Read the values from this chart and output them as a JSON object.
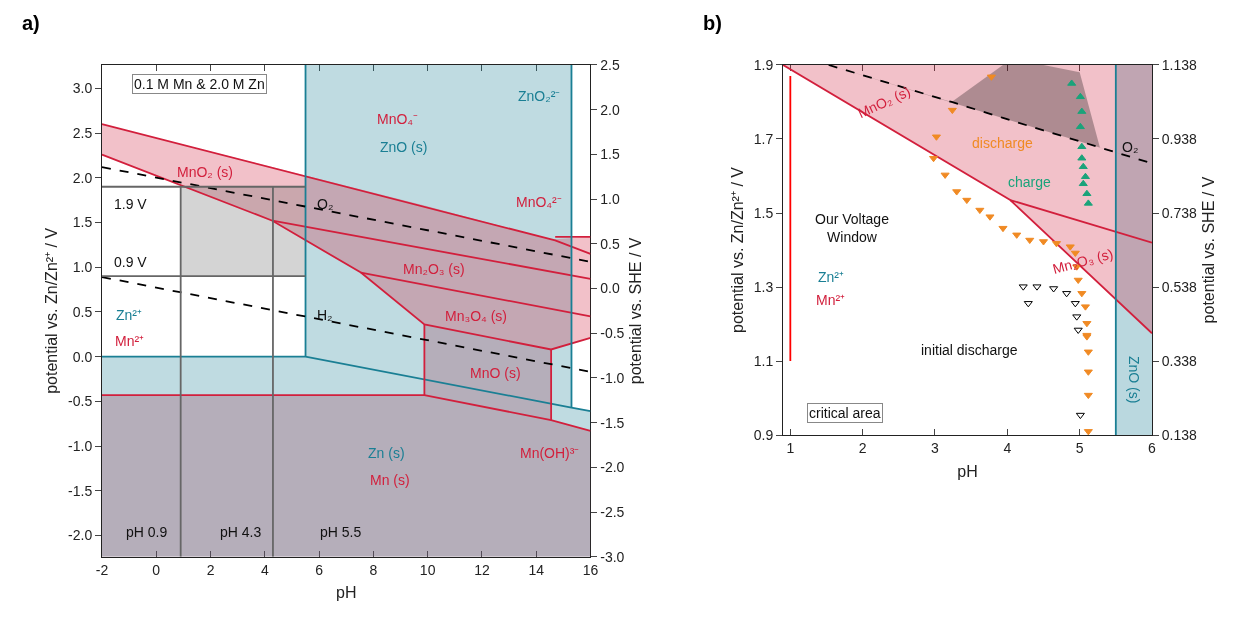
{
  "chart_data": [
    {
      "type": "line",
      "title": "a)",
      "xlabel": "pH",
      "ylabel": "potential vs. Zn/Zn²⁺ / V",
      "y2label": "potential vs. SHE / V",
      "xlim": [
        -2,
        16
      ],
      "xticks": [
        -2,
        0,
        2,
        4,
        6,
        8,
        10,
        12,
        14,
        16
      ],
      "ylim": [
        -2.238,
        3.262
      ],
      "yticks": [
        {
          "value": -2,
          "label": "-2.0"
        },
        {
          "value": -1.5,
          "label": "-1.5"
        },
        {
          "value": -1,
          "label": "-1.0"
        },
        {
          "value": -0.5,
          "label": "-0.5"
        },
        {
          "value": 0,
          "label": "0.0"
        },
        {
          "value": 0.5,
          "label": "0.5"
        },
        {
          "value": 1,
          "label": "1.0"
        },
        {
          "value": 1.5,
          "label": "1.5"
        },
        {
          "value": 2,
          "label": "2.0"
        },
        {
          "value": 2.5,
          "label": "2.5"
        },
        {
          "value": 3,
          "label": "3.0"
        }
      ],
      "y2lim": [
        -3,
        2.5
      ],
      "y2ticks": [
        {
          "value": -3,
          "label": "-3.0"
        },
        {
          "value": -2.5,
          "label": "-2.5"
        },
        {
          "value": -2,
          "label": "-2.0"
        },
        {
          "value": -1.5,
          "label": "-1.5"
        },
        {
          "value": -1,
          "label": "-1.0"
        },
        {
          "value": -0.5,
          "label": "-0.5"
        },
        {
          "value": 0,
          "label": "0.0"
        },
        {
          "value": 0.5,
          "label": "0.5"
        },
        {
          "value": 1,
          "label": "1.0"
        },
        {
          "value": 1.5,
          "label": "1.5"
        },
        {
          "value": 2,
          "label": "2.0"
        },
        {
          "value": 2.5,
          "label": "2.5"
        }
      ],
      "series": [
        {
          "color": "#d21f3c",
          "x": [
            -2,
            9.88,
            9.88,
            14.55,
            14.55,
            16
          ],
          "values": [
            -0.43,
            -0.43,
            -0.43,
            -0.71,
            -0.71,
            -0.83
          ],
          "lower": [
            -2.238,
            -2.238,
            -2.238,
            -2.238,
            -2.238,
            -2.238
          ],
          "upper": [
            -0.43,
            -0.43,
            0.36,
            0.08,
            -0.71,
            -0.83
          ]
        },
        {
          "color": "#1a7f94",
          "x": [
            -2,
            5.5,
            5.5,
            15.3,
            15.3,
            16
          ],
          "values": [
            0,
            0,
            0,
            -0.57,
            -0.57,
            -0.61
          ],
          "lower": [
            -2.238,
            -2.238,
            -2.238,
            -2.238,
            -2.238,
            -2.238
          ],
          "upper": [
            0,
            0,
            3.262,
            3.262,
            -0.57,
            -0.61
          ]
        },
        {
          "color": "#d21f3c",
          "x": [
            -2,
            4.28,
            7.54,
            9.88,
            14.55,
            16
          ],
          "values": [
            2.26,
            1.52,
            0.94,
            0.36,
            0.08,
            0.21
          ],
          "lower": [
            2.26,
            1.52,
            0.94,
            0.36,
            0.08,
            0.21
          ],
          "upper": [
            2.6,
            2.12,
            1.87,
            1.69,
            1.31,
            1.34
          ]
        },
        {
          "color": "#d21f3c",
          "x": [
            -2,
            14.7,
            16
          ],
          "values": [
            2.6,
            1.3,
            1.15
          ]
        },
        {
          "color": "#d21f3c",
          "x": [
            14.7,
            16
          ],
          "values": [
            1.34,
            1.34
          ]
        },
        {
          "color": "#d21f3c",
          "x": [
            4.28,
            16
          ],
          "values": [
            1.52,
            0.87
          ]
        },
        {
          "color": "#d21f3c",
          "x": [
            7.54,
            16
          ],
          "values": [
            0.94,
            0.45
          ]
        },
        {
          "color": "#d21f3c",
          "x": [
            9.88,
            9.88
          ],
          "values": [
            0.36,
            -0.43
          ]
        },
        {
          "color": "#d21f3c",
          "x": [
            14.55,
            14.55
          ],
          "values": [
            0.08,
            -0.71
          ]
        },
        {
          "color": "#1a7f94",
          "x": [
            5.5,
            5.5
          ],
          "values": [
            0,
            3.262
          ]
        },
        {
          "color": "#1a7f94",
          "x": [
            15.3,
            15.3
          ],
          "values": [
            3.262,
            -0.57
          ]
        },
        {
          "color": "#000000",
          "line_style": "dashed",
          "x": [
            -2,
            16
          ],
          "values": [
            2.12,
            1.06
          ]
        },
        {
          "color": "#000000",
          "line_style": "dashed",
          "x": [
            -2,
            16
          ],
          "values": [
            0.89,
            -0.17
          ]
        },
        {
          "color": "#666666",
          "x": [
            -2,
            5.5
          ],
          "values": [
            1.9,
            1.9
          ]
        },
        {
          "color": "#666666",
          "x": [
            -2,
            0.9,
            0.9,
            5.5
          ],
          "values": [
            0.9,
            0.9,
            0.9,
            0.9
          ],
          "lower": [
            0.9,
            0.9,
            0.9,
            0.9
          ],
          "upper": [
            0.9,
            0.9,
            1.9,
            1.9
          ]
        },
        {
          "color": "#666666",
          "x": [
            0.9,
            0.9
          ],
          "values": [
            1.9,
            -2.238
          ]
        },
        {
          "color": "#666666",
          "x": [
            4.3,
            4.3
          ],
          "values": [
            1.9,
            -2.238
          ]
        }
      ],
      "annotations": [
        "0.1 M Mn & 2.0 M Zn",
        "MnO₄⁻",
        "ZnO (s)",
        "MnO₂ (s)",
        "O₂",
        "H₂",
        "1.9 V",
        "0.9 V",
        "Zn²⁺",
        "Mn²⁺",
        "ZnO₂²⁻",
        "MnO₄²⁻",
        "Mn₂O₃ (s)",
        "Mn₃O₄ (s)",
        "MnO (s)",
        "Zn (s)",
        "Mn (s)",
        "Mn(OH)³⁻",
        "pH 0.9",
        "pH 4.3",
        "pH 5.5"
      ]
    },
    {
      "type": "scatter",
      "title": "b)",
      "xlabel": "pH",
      "ylabel": "potential vs. Zn/Zn²⁺ / V",
      "y2label": "potential vs. SHE / V",
      "xlim": [
        0.9,
        6
      ],
      "xticks": [
        1,
        2,
        3,
        4,
        5,
        6
      ],
      "ylim": [
        0.9,
        1.9
      ],
      "yticks": [
        0.9,
        1.1,
        1.3,
        1.5,
        1.7,
        1.9
      ],
      "y2lim": [
        0.138,
        1.138
      ],
      "y2ticks": [
        0.138,
        0.338,
        0.538,
        0.738,
        0.938,
        1.138
      ],
      "bands": [
        {
          "axis": "x",
          "from": 5.5,
          "to": 6.0,
          "color": "#1a7f94"
        }
      ],
      "series": [
        {
          "type": "line",
          "color": "#d21f3c",
          "x": [
            0.9,
            4.04,
            6.0
          ],
          "values": [
            1.9,
            1.535,
            1.175
          ],
          "lower": [
            1.9,
            1.535,
            1.175
          ],
          "upper": [
            1.9,
            1.9,
            1.9
          ]
        },
        {
          "type": "line",
          "color": "#d21f3c",
          "x": [
            4.04,
            6.0
          ],
          "values": [
            1.535,
            1.42
          ]
        },
        {
          "type": "line",
          "color": "#1a7f94",
          "x": [
            5.5,
            5.5
          ],
          "values": [
            1.9,
            0.9
          ]
        },
        {
          "type": "line",
          "color": "#000000",
          "line_style": "dashed",
          "x": [
            1.53,
            3.23,
            3.94,
            4.5,
            5.0,
            5.28,
            6.0
          ],
          "values": [
            1.9,
            1.8,
            1.757,
            1.723,
            1.694,
            1.677,
            1.634
          ],
          "lower": [
            1.9,
            1.8,
            1.757,
            1.723,
            1.694,
            1.677,
            1.634
          ],
          "upper": [
            1.9,
            1.8,
            1.9,
            1.9,
            1.88,
            1.677,
            1.634
          ]
        },
        {
          "type": "line",
          "color": "#ff0000",
          "x": [
            1,
            1
          ],
          "values": [
            1.1,
            1.87
          ]
        },
        {
          "marker": "triangle-down",
          "color": "#f08a24",
          "x": [
            3.78,
            3.24,
            3.02,
            2.98,
            3.14,
            3.3,
            3.44,
            3.62,
            3.76,
            3.94,
            4.13,
            4.31,
            4.5,
            4.68,
            4.87,
            4.94,
            4.96,
            4.98,
            5.03,
            5.08,
            5.1,
            5.1,
            5.1,
            5.12,
            5.12,
            5.12,
            5.12
          ],
          "values": [
            1.868,
            1.778,
            1.706,
            1.648,
            1.603,
            1.558,
            1.535,
            1.508,
            1.49,
            1.459,
            1.441,
            1.427,
            1.423,
            1.418,
            1.409,
            1.392,
            1.355,
            1.319,
            1.283,
            1.247,
            1.202,
            1.17,
            1.166,
            1.125,
            1.071,
            1.008,
            0.91
          ]
        },
        {
          "marker": "triangle",
          "color": "#1aa37a",
          "x": [
            4.89,
            5.01,
            5.03,
            5.01,
            5.03,
            5.03,
            5.05,
            5.08,
            5.05,
            5.1,
            5.12
          ],
          "values": [
            1.85,
            1.814,
            1.774,
            1.733,
            1.679,
            1.648,
            1.625,
            1.598,
            1.579,
            1.552,
            1.526
          ]
        },
        {
          "marker": "triangle-down-open",
          "color": "#000000",
          "x": [
            4.22,
            4.29,
            4.41,
            4.64,
            4.82,
            4.94,
            4.96,
            4.98,
            5.01
          ],
          "values": [
            1.301,
            1.256,
            1.301,
            1.296,
            1.283,
            1.256,
            1.22,
            1.184,
            0.954
          ]
        }
      ],
      "annotations": [
        "MnO₂ (s)",
        "discharge",
        "charge",
        "O₂",
        "Mn₂O₃ (s)",
        "Our Voltage\nWindow",
        "Zn²⁺",
        "Mn²⁺",
        "initial discharge",
        "ZnO (s)",
        "critical area"
      ]
    }
  ]
}
